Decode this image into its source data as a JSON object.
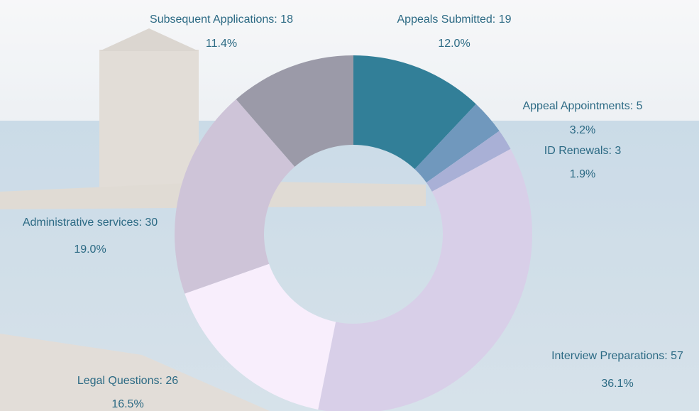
{
  "chart_data": {
    "type": "donut",
    "categories": [
      "Appeals Submitted",
      "Appeal Appointments",
      "ID Renewals",
      "Interview Preparations",
      "Legal Questions",
      "Administrative services",
      "Subsequent Applications"
    ],
    "values": [
      19,
      5,
      3,
      57,
      26,
      30,
      18
    ],
    "labels": [
      "Appeals Submitted: 19",
      "Appeal Appointments: 5",
      "ID Renewals: 3",
      "Interview Preparations: 57",
      "Legal Questions: 26",
      "Administrative services: 30",
      "Subsequent Applications: 18"
    ],
    "percent_labels": [
      "12.0%",
      "3.2%",
      "1.9%",
      "36.1%",
      "16.5%",
      "19.0%",
      "11.4%"
    ],
    "colors": [
      "#327f98",
      "#7098bd",
      "#a9b0d6",
      "#d8cfe8",
      "#f8eefc",
      "#cec4d8",
      "#9b9aa8"
    ]
  }
}
